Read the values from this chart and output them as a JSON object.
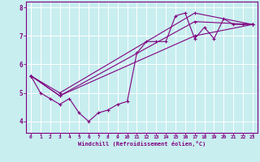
{
  "xlabel": "Windchill (Refroidissement éolien,°C)",
  "bg_color": "#c8eef0",
  "line_color": "#800080",
  "grid_color": "#ffffff",
  "ylim": [
    3.6,
    8.2
  ],
  "xlim": [
    -0.5,
    23.5
  ],
  "series1_x": [
    0,
    1,
    2,
    3,
    4,
    5,
    6,
    7,
    8,
    9,
    10,
    11,
    12,
    13,
    14,
    15,
    16,
    17,
    18,
    19,
    20,
    21,
    22,
    23
  ],
  "series1_y": [
    5.6,
    5.0,
    4.8,
    4.6,
    4.8,
    4.3,
    4.0,
    4.3,
    4.4,
    4.6,
    4.7,
    6.4,
    6.8,
    6.8,
    6.8,
    7.7,
    7.8,
    6.9,
    7.3,
    6.9,
    7.6,
    7.4,
    7.4,
    7.4
  ],
  "series2_x": [
    0,
    3,
    17,
    23
  ],
  "series2_y": [
    5.6,
    4.9,
    7.0,
    7.4
  ],
  "series3_x": [
    0,
    3,
    17,
    23
  ],
  "series3_y": [
    5.6,
    4.9,
    7.5,
    7.4
  ],
  "series4_x": [
    0,
    3,
    17,
    23
  ],
  "series4_y": [
    5.6,
    5.0,
    7.8,
    7.4
  ],
  "yticks": [
    4,
    5,
    6,
    7,
    8
  ],
  "xticks": [
    0,
    1,
    2,
    3,
    4,
    5,
    6,
    7,
    8,
    9,
    10,
    11,
    12,
    13,
    14,
    15,
    16,
    17,
    18,
    19,
    20,
    21,
    22,
    23
  ]
}
